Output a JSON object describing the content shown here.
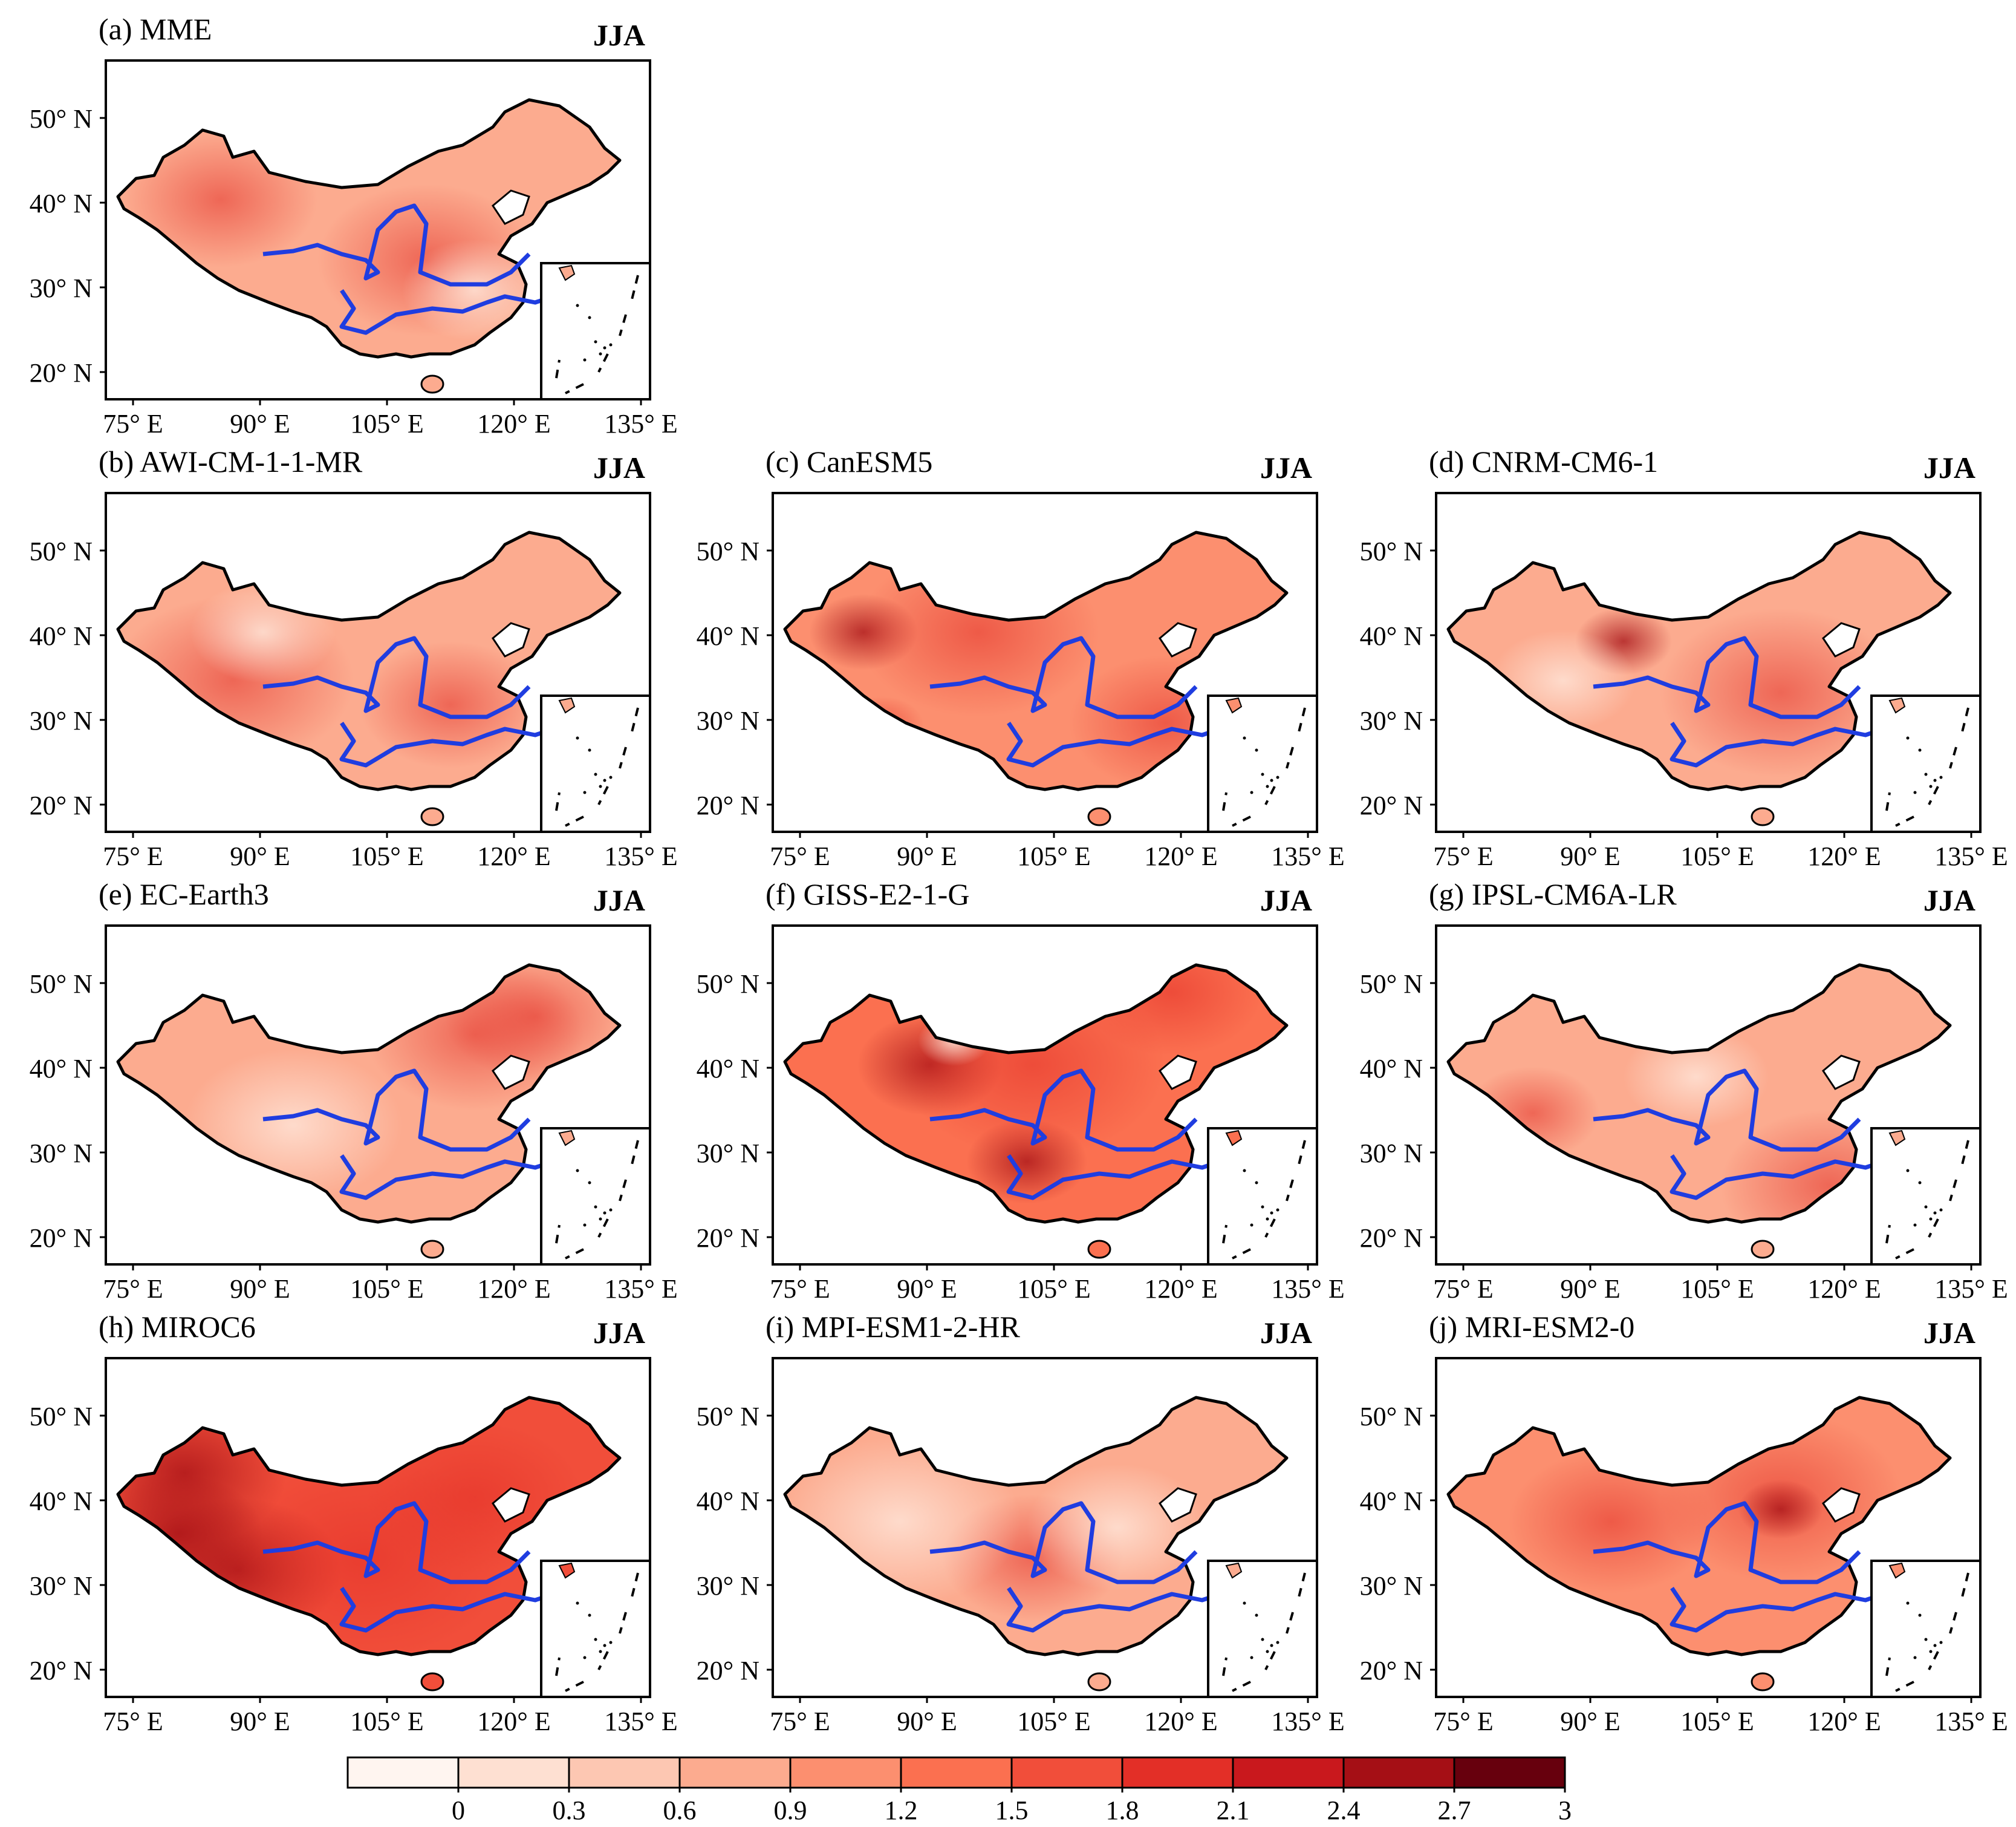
{
  "figure": {
    "season_label": "JJA",
    "lat_ticks": [
      "50° N",
      "40° N",
      "30° N",
      "20° N"
    ],
    "lon_ticks": [
      "75° E",
      "90° E",
      "105° E",
      "120° E",
      "135° E"
    ],
    "panels": [
      {
        "id": "a",
        "title": "(a) MME",
        "intensity": 0.35,
        "pattern": "mme"
      },
      {
        "id": "b",
        "title": "(b) AWI-CM-1-1-MR",
        "intensity": 0.3,
        "pattern": "awi"
      },
      {
        "id": "c",
        "title": "(c) CanESM5",
        "intensity": 0.45,
        "pattern": "can"
      },
      {
        "id": "d",
        "title": "(d) CNRM-CM6-1",
        "intensity": 0.35,
        "pattern": "cnrm"
      },
      {
        "id": "e",
        "title": "(e) EC-Earth3",
        "intensity": 0.4,
        "pattern": "ec"
      },
      {
        "id": "f",
        "title": "(f) GISS-E2-1-G",
        "intensity": 0.6,
        "pattern": "giss"
      },
      {
        "id": "g",
        "title": "(g) IPSL-CM6A-LR",
        "intensity": 0.3,
        "pattern": "ipsl"
      },
      {
        "id": "h",
        "title": "(h) MIROC6",
        "intensity": 0.85,
        "pattern": "miroc"
      },
      {
        "id": "i",
        "title": "(i) MPI-ESM1-2-HR",
        "intensity": 0.25,
        "pattern": "mpi"
      },
      {
        "id": "j",
        "title": "(j) MRI-ESM2-0",
        "intensity": 0.45,
        "pattern": "mri"
      }
    ]
  },
  "colorbar": {
    "colors": [
      "#fff5f0",
      "#fee0d2",
      "#fdc7b2",
      "#fcab8f",
      "#fc8f6f",
      "#fb7050",
      "#f14e3a",
      "#e32f27",
      "#c9181d",
      "#a50f15",
      "#67000d"
    ],
    "labels": [
      "0",
      "0.3",
      "0.6",
      "0.9",
      "1.2",
      "1.5",
      "1.8",
      "2.1",
      "2.4",
      "2.7",
      "3"
    ]
  },
  "colors": {
    "river": "#1f3de0",
    "border": "#000000"
  }
}
